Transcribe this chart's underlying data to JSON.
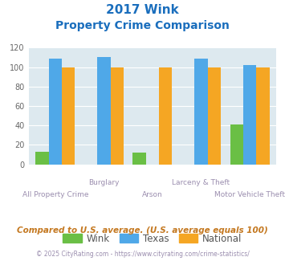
{
  "title_line1": "2017 Wink",
  "title_line2": "Property Crime Comparison",
  "categories": [
    "All Property Crime",
    "Burglary",
    "Arson",
    "Larceny & Theft",
    "Motor Vehicle Theft"
  ],
  "wink": [
    13,
    0,
    12,
    0,
    41
  ],
  "texas": [
    109,
    110,
    0,
    109,
    102
  ],
  "national": [
    100,
    100,
    100,
    100,
    100
  ],
  "wink_color": "#6abf45",
  "texas_color": "#4fa8e8",
  "national_color": "#f5a623",
  "ylim": [
    0,
    120
  ],
  "yticks": [
    0,
    20,
    40,
    60,
    80,
    100,
    120
  ],
  "bg_color": "#dde9ef",
  "title_color": "#1a6ebd",
  "xlabel_color": "#9b8eaf",
  "footer_text": "Compared to U.S. average. (U.S. average equals 100)",
  "copyright_text": "© 2025 CityRating.com - https://www.cityrating.com/crime-statistics/",
  "footer_color": "#c47820",
  "copyright_color": "#9b8eaf",
  "legend_labels": [
    "Wink",
    "Texas",
    "National"
  ]
}
